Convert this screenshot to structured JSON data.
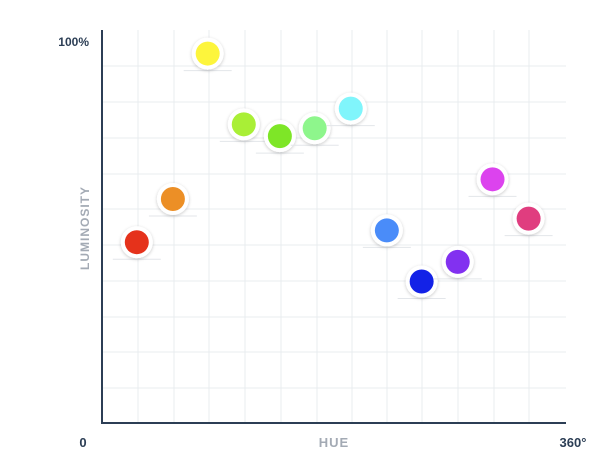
{
  "chart_data": {
    "type": "scatter",
    "title": "",
    "xlabel": "HUE",
    "ylabel": "LUMINOSITY",
    "x_tick_labels": {
      "min": "0",
      "max": "360°"
    },
    "y_tick_labels": {
      "max": "100%"
    },
    "xlim": [
      0,
      360
    ],
    "ylim": [
      0,
      100
    ],
    "grid": true,
    "colors": {
      "grid": "#e9ecef",
      "axis": "#2c3e55",
      "marker_ring": "#ffffff"
    },
    "points": [
      {
        "x": 27,
        "y": 46,
        "color": "#e5321b"
      },
      {
        "x": 55,
        "y": 57,
        "color": "#ec8f26"
      },
      {
        "x": 82,
        "y": 94,
        "color": "#fdf53c"
      },
      {
        "x": 110,
        "y": 76,
        "color": "#a9ef36"
      },
      {
        "x": 138,
        "y": 73,
        "color": "#7ee627"
      },
      {
        "x": 165,
        "y": 75,
        "color": "#8ef68c"
      },
      {
        "x": 193,
        "y": 80,
        "color": "#80f5fb"
      },
      {
        "x": 221,
        "y": 49,
        "color": "#4a8cf9"
      },
      {
        "x": 248,
        "y": 36,
        "color": "#1322e7"
      },
      {
        "x": 276,
        "y": 41,
        "color": "#8231f0"
      },
      {
        "x": 303,
        "y": 62,
        "color": "#dc43ee"
      },
      {
        "x": 331,
        "y": 52,
        "color": "#e03d7f"
      }
    ]
  }
}
